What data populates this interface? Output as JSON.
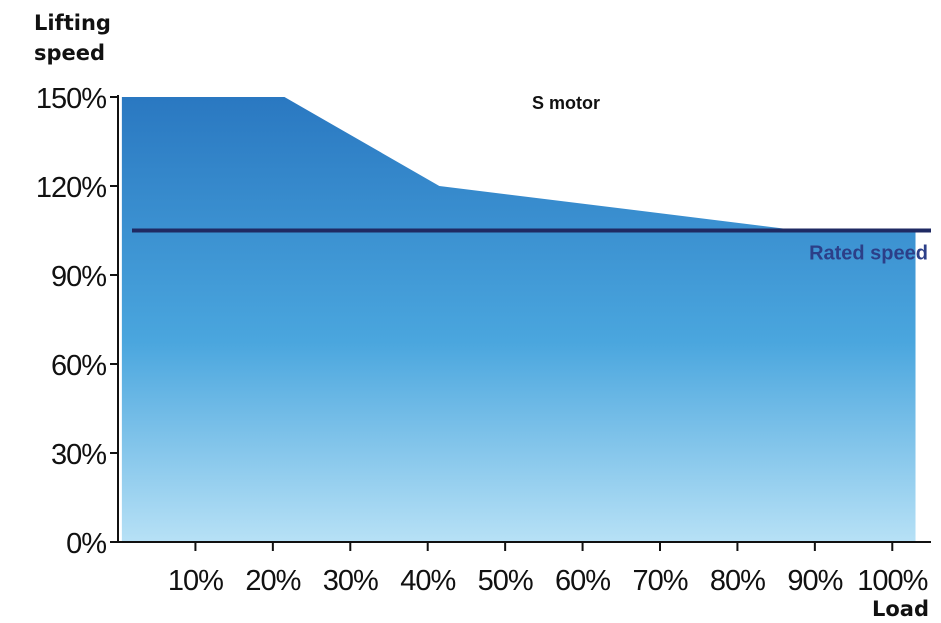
{
  "chart_data": {
    "type": "area",
    "ylabel": "Lifting\nspeed",
    "xlabel": "Load",
    "x_ticks": [
      "10%",
      "20%",
      "30%",
      "40%",
      "50%",
      "60%",
      "70%",
      "80%",
      "90%",
      "100%"
    ],
    "y_ticks": [
      "0%",
      "30%",
      "60%",
      "90%",
      "120%",
      "150%"
    ],
    "xlim": [
      0,
      105
    ],
    "ylim": [
      0,
      150
    ],
    "series": [
      {
        "name": "S motor",
        "x": [
          0.5,
          21.5,
          41.5,
          88,
          103
        ],
        "y": [
          150,
          150,
          120,
          105,
          105
        ]
      }
    ],
    "reference_line": {
      "label": "Rated speed",
      "y": 105
    },
    "colors": {
      "area_top": "#2a78c1",
      "area_mid": "#4aa6de",
      "area_bottom": "#b7e1f6",
      "reference_line": "#1f2a63"
    },
    "grid": false
  }
}
